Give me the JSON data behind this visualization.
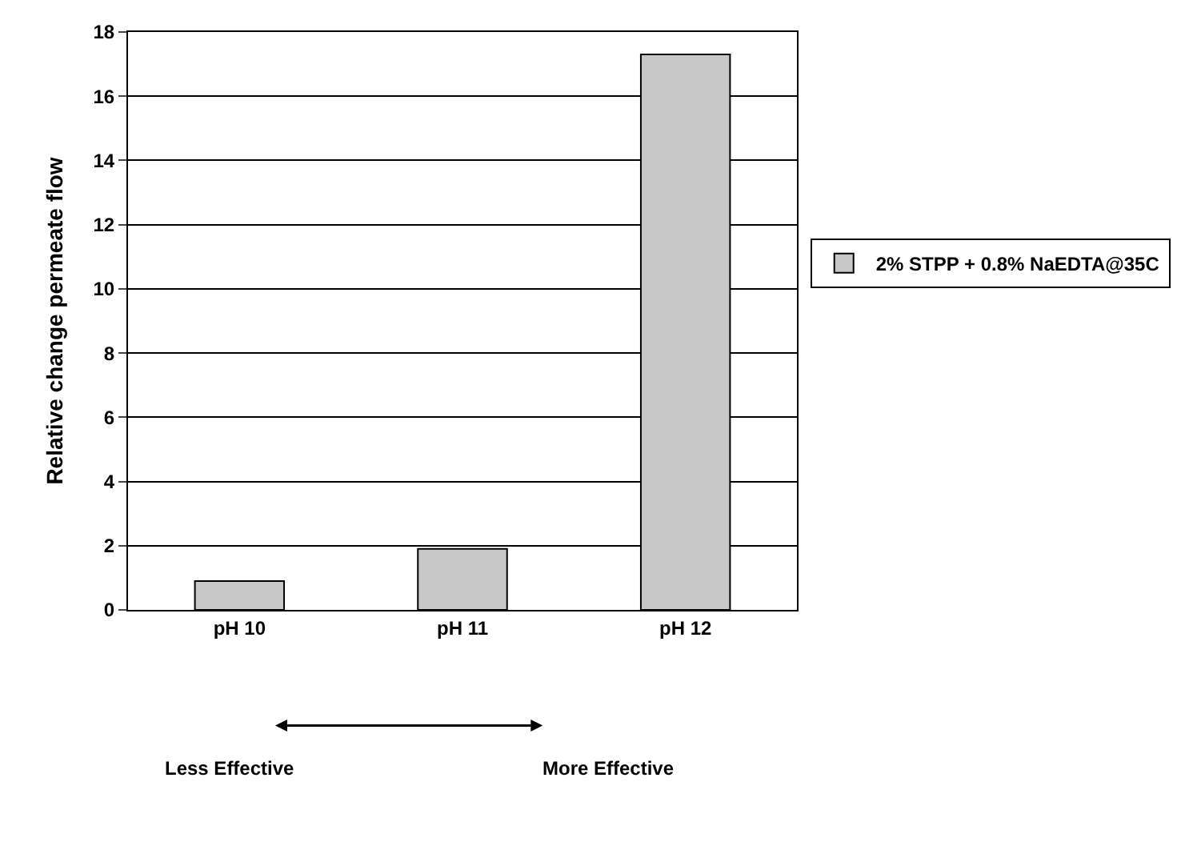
{
  "chart_data": {
    "type": "bar",
    "ylabel": "Relative change permeate flow",
    "categories": [
      "pH 10",
      "pH 11",
      "pH 12"
    ],
    "series": [
      {
        "name": "2% STPP + 0.8% NaEDTA@35C",
        "color": "#c8c8c8",
        "values": [
          0.9,
          1.9,
          17.3
        ]
      }
    ],
    "ylim": [
      0,
      18
    ],
    "yticks": [
      0,
      2,
      4,
      6,
      8,
      10,
      12,
      14,
      16,
      18
    ],
    "grid": "y",
    "legend": "right",
    "annotations": [
      "Less Effective",
      "More Effective"
    ]
  }
}
